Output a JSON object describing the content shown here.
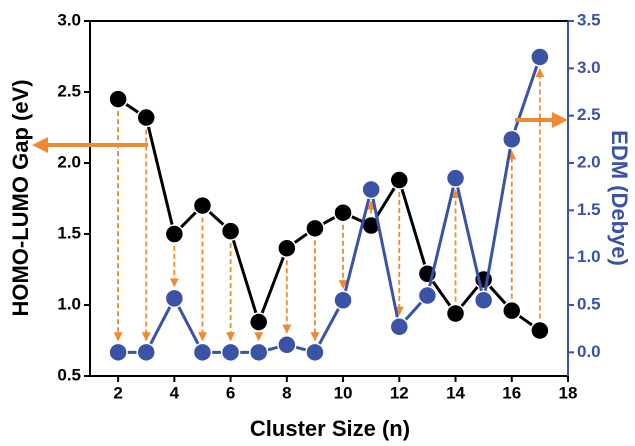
{
  "chart_data": {
    "type": "line",
    "x_label": "Cluster Size (n)",
    "y_label": "HOMO-LUMO Gap (eV)",
    "y2_label": "EDM (Debye)",
    "x": [
      2,
      3,
      4,
      5,
      6,
      7,
      8,
      9,
      10,
      11,
      12,
      13,
      14,
      15,
      16,
      17
    ],
    "series": [
      {
        "name": "HOMO-LUMO Gap",
        "color": "#000000",
        "axis": "y",
        "values": [
          2.45,
          2.32,
          1.5,
          1.7,
          1.52,
          0.88,
          1.4,
          1.54,
          1.65,
          1.56,
          1.88,
          1.22,
          0.94,
          1.18,
          0.96,
          0.82
        ]
      },
      {
        "name": "EDM",
        "color": "#3a53a4",
        "axis": "y2",
        "values": [
          0,
          0,
          0.57,
          0,
          0,
          0,
          0.08,
          0,
          0.55,
          1.72,
          0.27,
          0.6,
          1.84,
          0.55,
          2.25,
          3.12
        ]
      }
    ],
    "xlim": [
      1,
      18
    ],
    "xticks": [
      2,
      4,
      6,
      8,
      10,
      12,
      14,
      16,
      18
    ],
    "ylim": [
      0.5,
      3.0
    ],
    "yticks": [
      {
        "value": 0.5,
        "label": "0.5"
      },
      {
        "value": 1,
        "label": "1.0"
      },
      {
        "value": 1.5,
        "label": "1.5"
      },
      {
        "value": 2,
        "label": "2.0"
      },
      {
        "value": 2.5,
        "label": "2.5"
      },
      {
        "value": 3,
        "label": "3.0"
      }
    ],
    "y2lim": [
      -0.25,
      3.5
    ],
    "y2ticks": [
      {
        "value": 0,
        "label": "0.0"
      },
      {
        "value": 0.5,
        "label": "0.5"
      },
      {
        "value": 1,
        "label": "1.0"
      },
      {
        "value": 1.5,
        "label": "1.5"
      },
      {
        "value": 2,
        "label": "2.0"
      },
      {
        "value": 2.5,
        "label": "2.5"
      },
      {
        "value": 3,
        "label": "3.0"
      },
      {
        "value": 3.5,
        "label": "3.5"
      }
    ],
    "y2_color": "#3a53a4",
    "arrow_color": "#f08a30"
  }
}
